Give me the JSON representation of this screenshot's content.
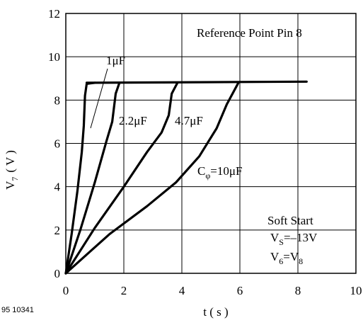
{
  "figure_code": "95 10341",
  "chart_data": {
    "type": "line",
    "xlabel": "t ( s )",
    "ylabel": {
      "main": "V",
      "sub": "7",
      "unit": "( V )"
    },
    "xlim": [
      0,
      10
    ],
    "ylim": [
      0,
      12
    ],
    "x_ticks": [
      0,
      2,
      4,
      6,
      8,
      10
    ],
    "y_ticks": [
      0,
      2,
      4,
      6,
      8,
      10,
      12
    ],
    "grid": true,
    "reference_note": "Reference Point Pin 8",
    "conditions": {
      "title": "Soft Start",
      "vs_main": "V",
      "vs_sub": "S",
      "vs_value": "=–13V",
      "v6_main": "V",
      "v6_sub": "6",
      "v6_eq": "=V",
      "v8_sub": "8"
    },
    "series": [
      {
        "name": "1μF",
        "points": [
          [
            0,
            0
          ],
          [
            0.2,
            1.8
          ],
          [
            0.4,
            3.8
          ],
          [
            0.55,
            5.6
          ],
          [
            0.62,
            6.8
          ],
          [
            0.66,
            8.2
          ],
          [
            0.72,
            8.75
          ],
          [
            1.0,
            8.8
          ]
        ]
      },
      {
        "name": "2.2μF",
        "points": [
          [
            0,
            0
          ],
          [
            0.5,
            2.0
          ],
          [
            1.0,
            4.2
          ],
          [
            1.4,
            6.1
          ],
          [
            1.6,
            7.0
          ],
          [
            1.72,
            8.3
          ],
          [
            1.85,
            8.8
          ]
        ]
      },
      {
        "name": "4.7μF",
        "points": [
          [
            0,
            0
          ],
          [
            1.0,
            2.1
          ],
          [
            2.0,
            4.0
          ],
          [
            2.8,
            5.6
          ],
          [
            3.3,
            6.5
          ],
          [
            3.55,
            7.3
          ],
          [
            3.65,
            8.3
          ],
          [
            3.85,
            8.8
          ]
        ]
      },
      {
        "name": "10μF",
        "label": {
          "main": "C",
          "sub": "φ",
          "rest": "=10μF"
        },
        "points": [
          [
            0,
            0
          ],
          [
            1.5,
            1.8
          ],
          [
            2.8,
            3.1
          ],
          [
            3.8,
            4.2
          ],
          [
            4.6,
            5.4
          ],
          [
            5.2,
            6.7
          ],
          [
            5.55,
            7.8
          ],
          [
            5.95,
            8.8
          ]
        ]
      },
      {
        "name": "plateau",
        "points": [
          [
            0.72,
            8.8
          ],
          [
            8.3,
            8.85
          ]
        ]
      }
    ]
  }
}
